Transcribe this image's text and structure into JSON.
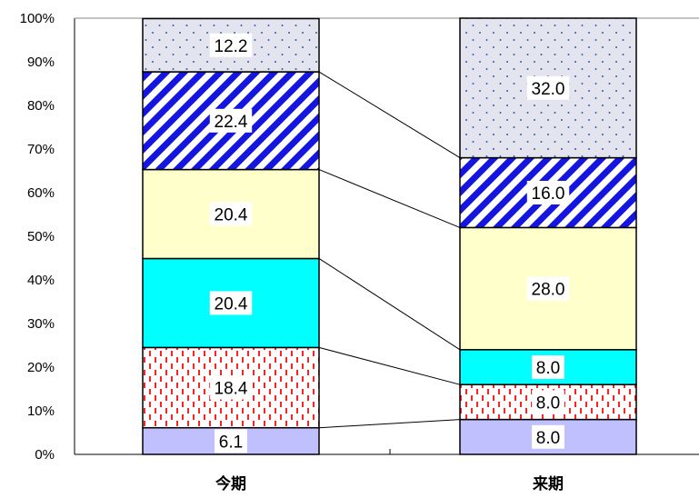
{
  "chart_data": {
    "type": "bar",
    "stacked": true,
    "percent": true,
    "categories": [
      "今期",
      "来期"
    ],
    "series": [
      {
        "values": [
          6.1,
          8.0
        ],
        "color": "#c0c0ff",
        "pattern": "solid"
      },
      {
        "values": [
          18.4,
          8.0
        ],
        "color": "#ff2020",
        "pattern": "red-dashes"
      },
      {
        "values": [
          20.4,
          8.0
        ],
        "color": "#00ffff",
        "pattern": "solid"
      },
      {
        "values": [
          20.4,
          28.0
        ],
        "color": "#ffffcc",
        "pattern": "solid"
      },
      {
        "values": [
          22.4,
          16.0
        ],
        "color": "#1515e0",
        "pattern": "diagonal-stripes"
      },
      {
        "values": [
          12.2,
          32.0
        ],
        "color": "#e4e4ee",
        "pattern": "dots"
      }
    ],
    "ylim": [
      0,
      100
    ],
    "yticks": [
      "0%",
      "10%",
      "20%",
      "30%",
      "40%",
      "50%",
      "60%",
      "70%",
      "80%",
      "90%",
      "100%"
    ],
    "grid": false,
    "legend": "none"
  }
}
